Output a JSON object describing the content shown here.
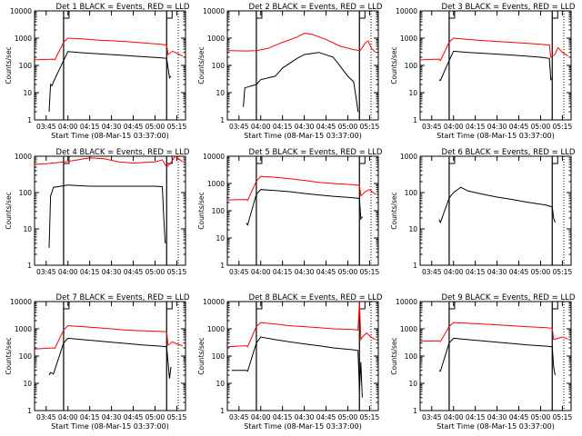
{
  "chart_data": [
    {
      "type": "line",
      "title": "Det 1 BLACK = Events, RED = LLD",
      "xlabel": "Start Time (08-Mar-15 03:37:00)",
      "ylabel": "Counts/sec",
      "ylog": true,
      "ylim": [
        1,
        10000
      ],
      "ytick_labels": [
        "1",
        "10",
        "100",
        "1000",
        "10000"
      ],
      "xlim": [
        "03:37",
        "05:21"
      ],
      "xticks": [
        "03:45",
        "04:00",
        "04:15",
        "04:30",
        "04:45",
        "05:00",
        "05:15"
      ],
      "markers": [
        "03:57",
        "05:08",
        "05:16"
      ],
      "series": [
        {
          "color": "#ff0000",
          "x": [
            "03:37",
            "03:50",
            "03:51",
            "03:57",
            "04:00",
            "04:10",
            "04:20",
            "04:30",
            "04:40",
            "04:50",
            "05:04",
            "05:08",
            "05:09",
            "05:12",
            "05:15",
            "05:19"
          ],
          "values": [
            160,
            170,
            160,
            700,
            1000,
            950,
            850,
            800,
            750,
            680,
            600,
            560,
            250,
            330,
            280,
            220
          ]
        },
        {
          "color": "#000000",
          "x": [
            "03:47",
            "03:48",
            "03:49",
            "03:50",
            "03:57",
            "04:00",
            "04:10",
            "04:20",
            "04:30",
            "04:40",
            "04:50",
            "05:04",
            "05:08",
            "05:10",
            "05:11"
          ],
          "values": [
            2,
            20,
            18,
            25,
            150,
            320,
            290,
            270,
            250,
            230,
            210,
            190,
            180,
            35,
            40
          ]
        }
      ]
    },
    {
      "type": "line",
      "title": "Det 2 BLACK = Events, RED = LLD",
      "xlabel": "Start Time (08-Mar-15 03:37:00)",
      "ylabel": "Counts/sec",
      "ylog": true,
      "ylim": [
        1,
        10000
      ],
      "ytick_labels": [
        "1",
        "10",
        "100",
        "1000",
        "10000"
      ],
      "xlim": [
        "03:37",
        "05:21"
      ],
      "xticks": [
        "03:45",
        "04:00",
        "04:15",
        "04:30",
        "04:45",
        "05:00",
        "05:15"
      ],
      "markers": [
        "03:57",
        "05:08",
        "05:16"
      ],
      "series": [
        {
          "color": "#ff0000",
          "x": [
            "03:37",
            "03:50",
            "03:57",
            "04:05",
            "04:15",
            "04:25",
            "04:30",
            "04:35",
            "04:45",
            "04:55",
            "05:04",
            "05:08",
            "05:09",
            "05:12",
            "05:14",
            "05:16",
            "05:19"
          ],
          "values": [
            350,
            340,
            350,
            420,
            700,
            1100,
            1500,
            1400,
            900,
            500,
            380,
            350,
            380,
            650,
            800,
            450,
            300
          ]
        },
        {
          "color": "#000000",
          "x": [
            "03:48",
            "03:49",
            "03:57",
            "04:00",
            "04:10",
            "04:15",
            "04:25",
            "04:30",
            "04:40",
            "04:50",
            "05:00",
            "05:04",
            "05:06",
            "05:07"
          ],
          "values": [
            3,
            15,
            20,
            30,
            40,
            80,
            180,
            250,
            300,
            200,
            40,
            25,
            5,
            2
          ]
        }
      ]
    },
    {
      "type": "line",
      "title": "Det 3 BLACK = Events, RED = LLD",
      "xlabel": "Start Time (08-Mar-15 03:37:00)",
      "ylabel": "Counts/sec",
      "ylog": true,
      "ylim": [
        1,
        10000
      ],
      "ytick_labels": [
        "1",
        "10",
        "100",
        "1000",
        "10000"
      ],
      "xlim": [
        "03:37",
        "05:21"
      ],
      "xticks": [
        "03:45",
        "04:00",
        "04:15",
        "04:30",
        "04:45",
        "05:00",
        "05:15"
      ],
      "markers": [
        "03:57",
        "05:08",
        "05:16"
      ],
      "series": [
        {
          "color": "#ff0000",
          "x": [
            "03:37",
            "03:50",
            "03:51",
            "03:57",
            "04:00",
            "04:10",
            "04:20",
            "04:30",
            "04:40",
            "04:50",
            "05:00",
            "05:06",
            "05:07",
            "05:10",
            "05:12",
            "05:15",
            "05:19"
          ],
          "values": [
            160,
            170,
            150,
            700,
            1000,
            900,
            820,
            760,
            700,
            650,
            600,
            560,
            200,
            260,
            450,
            300,
            220
          ]
        },
        {
          "color": "#000000",
          "x": [
            "03:50",
            "03:51",
            "03:57",
            "04:00",
            "04:10",
            "04:20",
            "04:30",
            "04:40",
            "04:50",
            "05:00",
            "05:06",
            "05:07",
            "05:08"
          ],
          "values": [
            30,
            28,
            150,
            330,
            300,
            280,
            260,
            240,
            220,
            200,
            180,
            30,
            35
          ]
        }
      ]
    },
    {
      "type": "line",
      "title": "Det 4 BLACK = Events, RED = LLD",
      "xlabel": "",
      "ylabel": "Counts/sec",
      "ylog": true,
      "ylim": [
        1,
        1000
      ],
      "ytick_labels": [
        "1",
        "10",
        "100",
        "1000"
      ],
      "xlim": [
        "03:37",
        "05:21"
      ],
      "xticks": [
        "03:45",
        "04:00",
        "04:15",
        "04:30",
        "04:45",
        "05:00",
        "05:15"
      ],
      "markers": [
        "03:57",
        "05:08",
        "05:16"
      ],
      "series": [
        {
          "color": "#ff0000",
          "x": [
            "03:37",
            "03:45",
            "03:50",
            "04:00",
            "04:15",
            "04:25",
            "04:35",
            "04:45",
            "05:00",
            "05:05",
            "05:08",
            "05:10",
            "05:14",
            "05:19"
          ],
          "values": [
            600,
            620,
            650,
            720,
            900,
            850,
            700,
            650,
            700,
            800,
            500,
            600,
            1000,
            700
          ]
        },
        {
          "color": "#000000",
          "x": [
            "03:47",
            "03:48",
            "03:50",
            "04:00",
            "04:15",
            "04:30",
            "04:45",
            "05:00",
            "05:05",
            "05:06",
            "05:07"
          ],
          "values": [
            3,
            80,
            140,
            160,
            150,
            150,
            150,
            150,
            145,
            20,
            4
          ]
        }
      ]
    },
    {
      "type": "line",
      "title": "Det 5 BLACK = Events, RED = LLD",
      "xlabel": "",
      "ylabel": "Counts/sec",
      "ylog": true,
      "ylim": [
        1,
        10000
      ],
      "ytick_labels": [
        "1",
        "10",
        "100",
        "1000",
        "10000"
      ],
      "xlim": [
        "03:37",
        "05:21"
      ],
      "xticks": [
        "03:45",
        "04:00",
        "04:15",
        "04:30",
        "04:45",
        "05:00",
        "05:15"
      ],
      "markers": [
        "03:57",
        "05:08",
        "05:16"
      ],
      "series": [
        {
          "color": "#ff0000",
          "x": [
            "03:37",
            "03:50",
            "03:51",
            "03:57",
            "04:00",
            "04:10",
            "04:20",
            "04:30",
            "04:40",
            "04:50",
            "05:04",
            "05:08",
            "05:09",
            "05:12",
            "05:15",
            "05:19"
          ],
          "values": [
            250,
            260,
            240,
            1200,
            1800,
            1700,
            1500,
            1300,
            1100,
            1000,
            900,
            850,
            350,
            500,
            600,
            400
          ]
        },
        {
          "color": "#000000",
          "x": [
            "03:50",
            "03:51",
            "03:57",
            "04:00",
            "04:10",
            "04:20",
            "04:30",
            "04:40",
            "04:50",
            "05:04",
            "05:08",
            "05:09",
            "05:10"
          ],
          "values": [
            35,
            30,
            400,
            600,
            550,
            500,
            430,
            380,
            340,
            300,
            280,
            50,
            60
          ]
        }
      ]
    },
    {
      "type": "line",
      "title": "Det 6 BLACK = Events, RED = LLD",
      "xlabel": "",
      "ylabel": "Counts/sec",
      "ylog": true,
      "ylim": [
        1,
        1000
      ],
      "ytick_labels": [
        "1",
        "10",
        "100",
        "1000"
      ],
      "xlim": [
        "03:37",
        "05:21"
      ],
      "xticks": [
        "03:45",
        "04:00",
        "04:15",
        "04:30",
        "04:45",
        "05:00",
        "05:15"
      ],
      "markers": [
        "03:57",
        "05:08",
        "05:16"
      ],
      "series": [
        {
          "color": "#000000",
          "x": [
            "03:50",
            "03:51",
            "03:57",
            "04:00",
            "04:05",
            "04:10",
            "04:20",
            "04:30",
            "04:40",
            "04:50",
            "05:04",
            "05:08",
            "05:09",
            "05:10"
          ],
          "values": [
            18,
            15,
            70,
            100,
            140,
            110,
            90,
            75,
            65,
            55,
            45,
            40,
            20,
            15
          ]
        }
      ]
    },
    {
      "type": "line",
      "title": "Det 7 BLACK = Events, RED = LLD",
      "xlabel": "Start Time (08-Mar-15 03:37:00)",
      "ylabel": "Counts/sec",
      "ylog": true,
      "ylim": [
        1,
        10000
      ],
      "ytick_labels": [
        "1",
        "10",
        "100",
        "1000",
        "10000"
      ],
      "xlim": [
        "03:37",
        "05:21"
      ],
      "xticks": [
        "03:45",
        "04:00",
        "04:15",
        "04:30",
        "04:45",
        "05:00",
        "05:15"
      ],
      "markers": [
        "03:57",
        "05:08",
        "05:16"
      ],
      "series": [
        {
          "color": "#ff0000",
          "x": [
            "03:37",
            "03:50",
            "03:51",
            "03:57",
            "04:00",
            "04:10",
            "04:20",
            "04:30",
            "04:40",
            "04:50",
            "05:04",
            "05:08",
            "05:09",
            "05:12",
            "05:15",
            "05:19"
          ],
          "values": [
            180,
            200,
            190,
            900,
            1300,
            1200,
            1100,
            1000,
            900,
            850,
            800,
            780,
            250,
            330,
            280,
            240
          ]
        },
        {
          "color": "#000000",
          "x": [
            "03:47",
            "03:48",
            "03:50",
            "03:57",
            "04:00",
            "04:10",
            "04:20",
            "04:30",
            "04:40",
            "04:50",
            "05:04",
            "05:08",
            "05:10",
            "05:11"
          ],
          "values": [
            20,
            25,
            22,
            300,
            450,
            400,
            360,
            320,
            290,
            260,
            230,
            220,
            15,
            40
          ]
        }
      ]
    },
    {
      "type": "line",
      "title": "Det 8 BLACK = Events, RED = LLD",
      "xlabel": "Start Time (08-Mar-15 03:37:00)",
      "ylabel": "Counts/sec",
      "ylog": true,
      "ylim": [
        1,
        10000
      ],
      "ytick_labels": [
        "1",
        "10",
        "100",
        "1000",
        "10000"
      ],
      "xlim": [
        "03:37",
        "05:21"
      ],
      "xticks": [
        "03:45",
        "04:00",
        "04:15",
        "04:30",
        "04:45",
        "05:00",
        "05:15"
      ],
      "markers": [
        "03:57",
        "05:08",
        "05:16"
      ],
      "series": [
        {
          "color": "#ff0000",
          "x": [
            "03:37",
            "03:50",
            "03:51",
            "03:57",
            "04:00",
            "04:10",
            "04:20",
            "04:30",
            "04:40",
            "04:50",
            "05:04",
            "05:07",
            "05:08",
            "05:09",
            "05:10",
            "05:13",
            "05:16",
            "05:19"
          ],
          "values": [
            220,
            240,
            220,
            1200,
            1700,
            1500,
            1300,
            1200,
            1100,
            1000,
            950,
            900,
            10000,
            400,
            500,
            700,
            500,
            400
          ]
        },
        {
          "color": "#000000",
          "x": [
            "03:40",
            "03:50",
            "03:51",
            "03:57",
            "04:00",
            "04:10",
            "04:20",
            "04:30",
            "04:40",
            "04:50",
            "05:04",
            "05:07",
            "05:08",
            "05:09",
            "05:10"
          ],
          "values": [
            30,
            30,
            28,
            300,
            500,
            400,
            330,
            280,
            240,
            200,
            170,
            160,
            5,
            60,
            3
          ]
        }
      ]
    },
    {
      "type": "line",
      "title": "Det 9 BLACK = Events, RED = LLD",
      "xlabel": "Start Time (08-Mar-15 03:37:00)",
      "ylabel": "Counts/sec",
      "ylog": true,
      "ylim": [
        1,
        10000
      ],
      "ytick_labels": [
        "1",
        "10",
        "100",
        "1000",
        "10000"
      ],
      "xlim": [
        "03:37",
        "05:21"
      ],
      "xticks": [
        "03:45",
        "04:00",
        "04:15",
        "04:30",
        "04:45",
        "05:00",
        "05:15"
      ],
      "markers": [
        "03:57",
        "05:08",
        "05:16"
      ],
      "series": [
        {
          "color": "#ff0000",
          "x": [
            "03:37",
            "03:50",
            "03:51",
            "03:57",
            "04:00",
            "04:10",
            "04:20",
            "04:30",
            "04:40",
            "04:50",
            "05:04",
            "05:08",
            "05:09",
            "05:12",
            "05:15",
            "05:19"
          ],
          "values": [
            350,
            360,
            340,
            1200,
            1700,
            1600,
            1500,
            1400,
            1300,
            1200,
            1100,
            1050,
            400,
            450,
            500,
            420
          ]
        },
        {
          "color": "#000000",
          "x": [
            "03:50",
            "03:51",
            "03:57",
            "04:00",
            "04:10",
            "04:20",
            "04:30",
            "04:40",
            "04:50",
            "05:04",
            "05:08",
            "05:09",
            "05:10"
          ],
          "values": [
            30,
            28,
            300,
            450,
            400,
            360,
            320,
            290,
            260,
            230,
            220,
            40,
            20
          ]
        }
      ]
    }
  ]
}
